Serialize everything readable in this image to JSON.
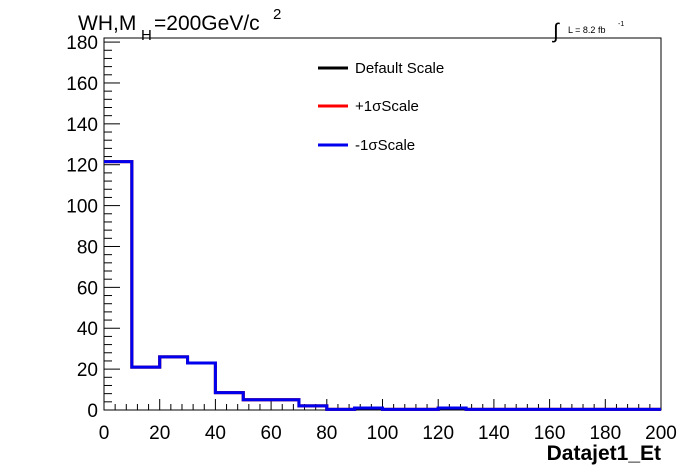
{
  "chart_data": {
    "type": "line",
    "title_main": "WH,M",
    "title_sub": "H",
    "title_rest": "=200GeV/c",
    "title_sup": "2",
    "luminosity": "L = 8.2 fb",
    "luminosity_sup": "-1",
    "luminosity_symbol": "∫",
    "xlabel": "Datajet1_Et",
    "ylabel": "",
    "xlim": [
      0,
      200
    ],
    "ylim": [
      0,
      182
    ],
    "x_ticks": [
      "0",
      "20",
      "40",
      "60",
      "80",
      "100",
      "120",
      "140",
      "160",
      "180",
      "200"
    ],
    "y_ticks": [
      "0",
      "20",
      "40",
      "60",
      "80",
      "100",
      "120",
      "140",
      "160",
      "180"
    ],
    "bin_edges": [
      0,
      10,
      20,
      30,
      40,
      50,
      60,
      70,
      80,
      90,
      100,
      110,
      120,
      130,
      140,
      150,
      160,
      170,
      180,
      190,
      200
    ],
    "legend_position": "top-center",
    "series": [
      {
        "name": "Default Scale",
        "color": "#000000",
        "values": [
          121.5,
          21,
          26,
          23,
          8.5,
          5,
          5,
          2,
          0.3,
          1,
          0.3,
          0.3,
          1,
          0.3,
          0.3,
          0.3,
          0.3,
          0.3,
          0.3,
          0.3
        ]
      },
      {
        "name": "+1σScale",
        "color": "#ff0000",
        "values": [
          121.5,
          21,
          26,
          23,
          8.5,
          5,
          5,
          2,
          0.3,
          1,
          0.3,
          0.3,
          1,
          0.3,
          0.3,
          0.3,
          0.3,
          0.3,
          0.3,
          0.3
        ]
      },
      {
        "name": "-1σScale",
        "color": "#0000ee",
        "values": [
          121.5,
          21,
          26,
          23,
          8.5,
          5,
          5,
          2,
          0.3,
          1,
          0.3,
          0.3,
          1,
          0.3,
          0.3,
          0.3,
          0.3,
          0.3,
          0.3,
          0.3
        ]
      }
    ]
  }
}
